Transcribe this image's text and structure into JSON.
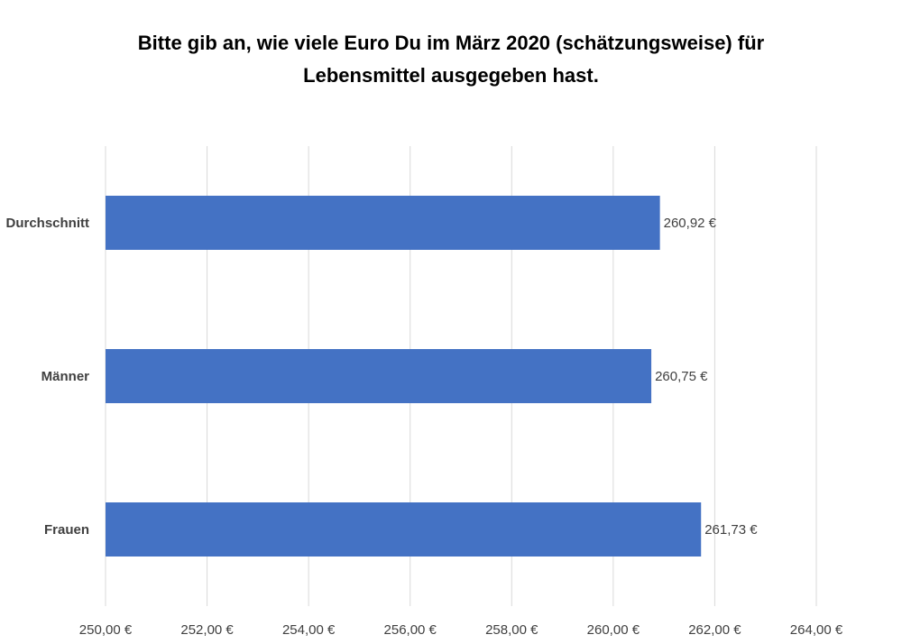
{
  "chart_data": {
    "type": "bar",
    "orientation": "horizontal",
    "title_lines": [
      "Bitte gib an, wie viele Euro Du im März 2020 (schätzungsweise) für",
      "Lebensmittel ausgegeben hast."
    ],
    "categories": [
      "Durchschnitt",
      "Männer",
      "Frauen"
    ],
    "values": [
      260.92,
      260.75,
      261.73
    ],
    "data_labels": [
      "260,92 €",
      "260,75 €",
      "261,73 €"
    ],
    "xlim": [
      250,
      264
    ],
    "ticks": [
      250,
      252,
      254,
      256,
      258,
      260,
      262,
      264
    ],
    "tick_labels": [
      "250,00 €",
      "252,00 €",
      "254,00 €",
      "256,00 €",
      "258,00 €",
      "260,00 €",
      "262,00 €",
      "264,00 €"
    ],
    "grid": true,
    "legend": "none",
    "colors": {
      "bar": "#4472C4",
      "grid": "#D9D9D9",
      "text": "#404040"
    }
  }
}
